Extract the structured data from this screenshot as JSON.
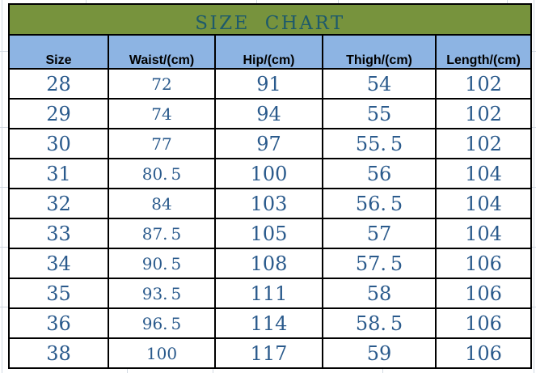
{
  "style": {
    "page_bg": "#FFFFFF",
    "title_bg": "#77933D",
    "title_color": "#1E5A6B",
    "header_bg": "#8DB4E3",
    "header_text": "#000000",
    "number_color": "#2A5A8C",
    "border_color": "#000000",
    "gridline_color": "#D3DAE3"
  },
  "chart_data": {
    "type": "table",
    "title": "SIZE CHART",
    "columns": [
      "Size",
      "Waist/(cm)",
      "Hip/(cm)",
      "Thigh/(cm)",
      "Length/(cm)"
    ],
    "rows": [
      [
        28,
        72,
        91,
        54,
        102
      ],
      [
        29,
        74,
        94,
        55,
        102
      ],
      [
        30,
        77,
        97,
        55.5,
        102
      ],
      [
        31,
        80.5,
        100,
        56,
        104
      ],
      [
        32,
        84,
        103,
        56.5,
        104
      ],
      [
        33,
        87.5,
        105,
        57,
        104
      ],
      [
        34,
        90.5,
        108,
        57.5,
        106
      ],
      [
        35,
        93.5,
        111,
        58,
        106
      ],
      [
        36,
        96.5,
        114,
        58.5,
        106
      ],
      [
        38,
        100,
        117,
        59,
        106
      ]
    ]
  }
}
